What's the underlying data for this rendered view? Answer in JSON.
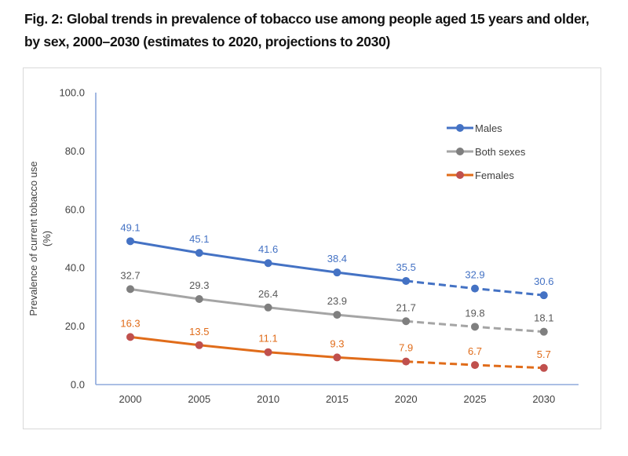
{
  "title_line1": "Fig. 2: Global trends in prevalence of tobacco use among people aged 15 years and older,",
  "title_line2": "by sex, 2000–2030 (estimates to 2020, projections to 2030)",
  "chart_data": {
    "type": "line",
    "title": "Fig. 2: Global trends in prevalence of tobacco use among people aged 15 years and older, by sex, 2000–2030 (estimates to 2020, projections to 2030)",
    "xlabel": "",
    "ylabel": "Prevalence of current tobacco use (%)",
    "ylabel_lines": [
      "Prevalence of current tobacco use",
      "(%)"
    ],
    "ylim": [
      0,
      100
    ],
    "yticks": [
      "0.0",
      "20.0",
      "40.0",
      "60.0",
      "80.0",
      "100.0"
    ],
    "x": [
      "2000",
      "2005",
      "2010",
      "2015",
      "2020",
      "2025",
      "2030"
    ],
    "projection_start": "2020",
    "grid": false,
    "legend_position": "top-right",
    "series": [
      {
        "name": "Males",
        "color": "#4472c4",
        "marker_color": "#4472c4",
        "label_color": "#4472c4",
        "values": [
          49.1,
          45.1,
          41.6,
          38.4,
          35.5,
          32.9,
          30.6
        ]
      },
      {
        "name": "Both sexes",
        "color": "#a5a5a5",
        "marker_color": "#7f7f7f",
        "label_color": "#595959",
        "values": [
          32.7,
          29.3,
          26.4,
          23.9,
          21.7,
          19.8,
          18.1
        ]
      },
      {
        "name": "Females",
        "color": "#e06c1a",
        "marker_color": "#c0504d",
        "label_color": "#e06c1a",
        "values": [
          16.3,
          13.5,
          11.1,
          9.3,
          7.9,
          6.7,
          5.7
        ]
      }
    ]
  }
}
